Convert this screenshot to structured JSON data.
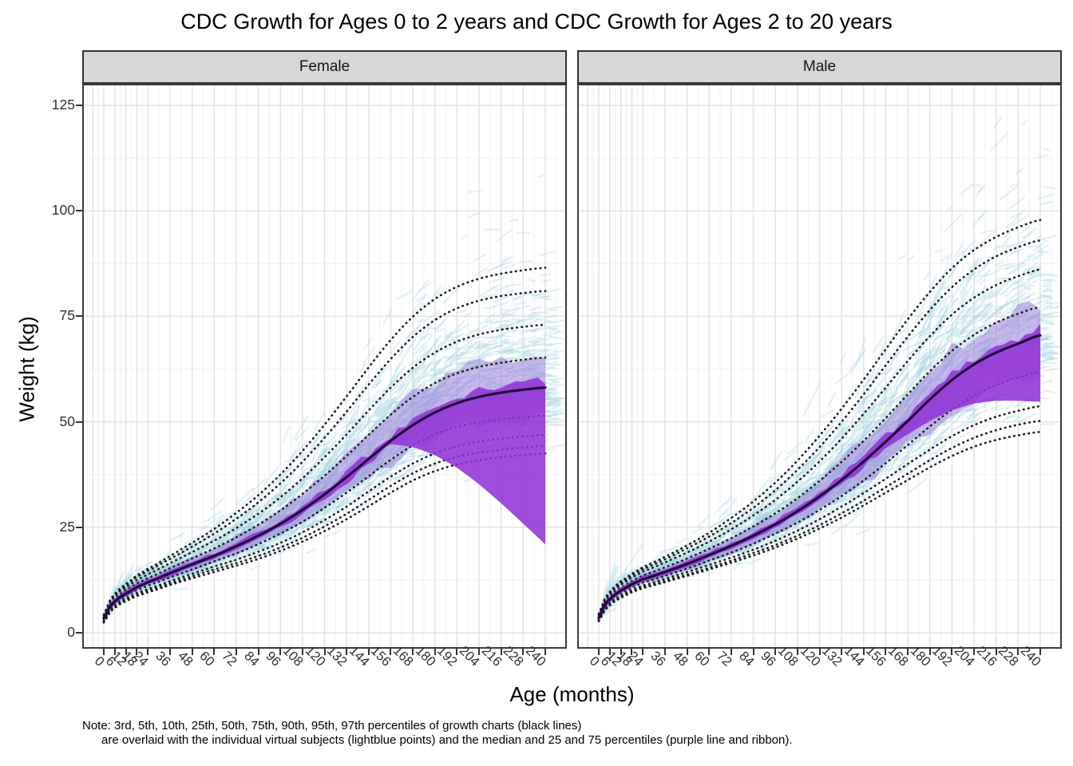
{
  "page": {
    "background": "#ffffff"
  },
  "note": {
    "line1": "Note: 3rd, 5th, 10th, 25th, 50th, 75th, 90th, 95th, 97th percentiles of growth charts (black lines)",
    "line2": "are overlaid with the individual virtual subjects (lightblue points) and the median and 25 and 75 percentiles (purple line and ribbon)."
  },
  "chart_data": {
    "type": "line",
    "title": "CDC Growth for Ages 0 to 2 years and CDC Growth for Ages 2 to 20 years",
    "xlabel": "Age (months)",
    "ylabel": "Weight (kg)",
    "x_ticks": [
      0,
      6,
      12,
      18,
      24,
      36,
      48,
      60,
      72,
      84,
      96,
      108,
      120,
      132,
      144,
      156,
      168,
      180,
      192,
      204,
      216,
      228,
      240
    ],
    "y_ticks": [
      0,
      25,
      50,
      75,
      100,
      125
    ],
    "xlim": [
      -12,
      252
    ],
    "ylim": [
      -4,
      130
    ],
    "grid": true,
    "legend_position": "none",
    "percentile_labels": [
      "3rd",
      "5th",
      "10th",
      "25th",
      "50th",
      "75th",
      "90th",
      "95th",
      "97th"
    ],
    "ages_months": [
      0,
      3,
      6,
      9,
      12,
      18,
      24,
      36,
      48,
      60,
      72,
      84,
      96,
      108,
      120,
      132,
      144,
      156,
      168,
      180,
      192,
      204,
      216,
      228,
      240
    ],
    "facets": [
      {
        "label": "Female",
        "series": {
          "p3": [
            2.4,
            4.6,
            5.9,
            6.8,
            7.5,
            8.7,
            9.6,
            11.3,
            12.9,
            14.4,
            15.9,
            17.5,
            19.4,
            21.6,
            24.1,
            26.9,
            30.0,
            33.2,
            36.1,
            38.3,
            39.9,
            40.9,
            41.6,
            42.1,
            42.5
          ],
          "p5": [
            2.5,
            4.8,
            6.1,
            7.0,
            7.8,
            9.0,
            10.0,
            11.7,
            13.4,
            15.0,
            16.5,
            18.2,
            20.2,
            22.5,
            25.2,
            28.2,
            31.5,
            34.8,
            37.8,
            40.1,
            41.7,
            42.7,
            43.4,
            43.9,
            44.3
          ],
          "p10": [
            2.7,
            5.1,
            6.4,
            7.4,
            8.1,
            9.4,
            10.4,
            12.2,
            14.0,
            15.7,
            17.3,
            19.2,
            21.3,
            23.8,
            26.7,
            29.9,
            33.5,
            37.0,
            40.1,
            42.5,
            44.2,
            45.3,
            46.0,
            46.5,
            46.9
          ],
          "p25": [
            3.0,
            5.5,
            6.9,
            7.9,
            8.7,
            10.1,
            11.2,
            13.1,
            15.0,
            16.9,
            18.8,
            21.0,
            23.5,
            26.3,
            29.6,
            33.2,
            37.1,
            41.0,
            44.4,
            47.0,
            48.8,
            49.9,
            50.6,
            51.1,
            51.5
          ],
          "p50": [
            3.4,
            6.0,
            7.4,
            8.5,
            9.3,
            10.8,
            12.0,
            14.1,
            16.2,
            18.2,
            20.5,
            23.0,
            25.8,
            29.1,
            32.8,
            36.9,
            41.2,
            45.5,
            49.2,
            52.2,
            54.4,
            55.9,
            56.9,
            57.6,
            58.1
          ],
          "p75": [
            3.7,
            6.5,
            8.0,
            9.2,
            10.1,
            11.7,
            13.0,
            15.3,
            17.6,
            20.0,
            22.6,
            25.6,
            29.0,
            32.9,
            37.2,
            41.9,
            46.9,
            51.7,
            55.9,
            59.2,
            61.5,
            63.0,
            64.0,
            64.7,
            65.2
          ],
          "p90": [
            4.0,
            7.0,
            8.6,
            9.9,
            10.8,
            12.5,
            13.9,
            16.5,
            19.1,
            21.8,
            24.8,
            28.2,
            32.1,
            36.6,
            41.6,
            47.0,
            52.7,
            58.1,
            62.8,
            66.4,
            69.0,
            70.7,
            71.8,
            72.5,
            73.0
          ],
          "p95": [
            4.2,
            7.2,
            8.9,
            10.3,
            11.3,
            13.2,
            14.7,
            17.5,
            20.4,
            23.5,
            27.0,
            30.9,
            35.4,
            40.5,
            46.2,
            52.4,
            58.8,
            64.9,
            70.1,
            74.1,
            76.9,
            78.7,
            79.8,
            80.5,
            81.0
          ],
          "p97": [
            4.3,
            7.4,
            9.2,
            10.6,
            11.6,
            13.6,
            15.2,
            18.2,
            21.3,
            24.6,
            28.4,
            32.6,
            37.5,
            43.1,
            49.3,
            56.0,
            62.9,
            69.4,
            74.9,
            79.1,
            82.0,
            83.9,
            85.1,
            85.9,
            86.5
          ]
        }
      },
      {
        "label": "Male",
        "series": {
          "p3": [
            2.7,
            5.1,
            6.5,
            7.5,
            8.3,
            9.6,
            10.6,
            12.0,
            13.5,
            15.0,
            16.6,
            18.3,
            20.2,
            22.3,
            24.7,
            27.3,
            30.2,
            33.2,
            36.2,
            39.2,
            41.9,
            44.1,
            45.7,
            46.8,
            47.6
          ],
          "p5": [
            2.8,
            5.3,
            6.7,
            7.7,
            8.5,
            9.8,
            10.8,
            12.3,
            13.8,
            15.4,
            17.1,
            18.9,
            20.8,
            23.0,
            25.5,
            28.3,
            31.3,
            34.5,
            37.7,
            40.9,
            43.8,
            46.2,
            48.0,
            49.3,
            50.2
          ],
          "p10": [
            3.0,
            5.5,
            7.0,
            8.0,
            8.8,
            10.2,
            11.2,
            12.8,
            14.4,
            16.1,
            17.8,
            19.7,
            21.8,
            24.2,
            26.9,
            29.9,
            33.1,
            36.5,
            40.0,
            43.4,
            46.6,
            49.2,
            51.2,
            52.6,
            53.7
          ],
          "p25": [
            3.2,
            5.9,
            7.4,
            8.6,
            9.4,
            10.8,
            11.9,
            13.5,
            15.2,
            17.1,
            19.0,
            21.1,
            23.5,
            26.1,
            29.1,
            32.4,
            36.1,
            40.2,
            44.5,
            48.9,
            52.9,
            56.2,
            58.7,
            60.5,
            61.8
          ],
          "p50": [
            3.5,
            6.4,
            7.9,
            9.1,
            10.0,
            11.5,
            12.7,
            14.4,
            16.3,
            18.4,
            20.6,
            23.0,
            25.7,
            28.8,
            32.3,
            36.2,
            40.6,
            45.3,
            50.2,
            55.3,
            59.9,
            63.6,
            66.4,
            68.5,
            70.5
          ],
          "p75": [
            3.9,
            6.9,
            8.5,
            9.8,
            10.7,
            12.3,
            13.6,
            15.5,
            17.6,
            19.9,
            22.4,
            25.2,
            28.3,
            31.9,
            36.0,
            40.5,
            45.5,
            50.9,
            56.5,
            62.0,
            66.8,
            70.6,
            73.5,
            75.6,
            77.2
          ],
          "p90": [
            4.2,
            7.3,
            9.1,
            10.4,
            11.4,
            13.1,
            14.5,
            16.7,
            19.0,
            21.6,
            24.5,
            27.8,
            31.5,
            35.8,
            40.6,
            46.0,
            51.9,
            58.1,
            64.4,
            70.3,
            75.4,
            79.4,
            82.4,
            84.5,
            86.1
          ],
          "p95": [
            4.4,
            7.6,
            9.4,
            10.8,
            11.8,
            13.6,
            15.1,
            17.4,
            20.0,
            22.8,
            26.0,
            29.6,
            33.8,
            38.6,
            44.0,
            50.0,
            56.5,
            63.4,
            70.2,
            76.5,
            81.9,
            86.1,
            89.2,
            91.4,
            93.0
          ],
          "p97": [
            4.5,
            7.8,
            9.7,
            11.1,
            12.2,
            14.0,
            15.6,
            18.0,
            20.7,
            23.7,
            27.2,
            31.1,
            35.6,
            40.8,
            46.7,
            53.1,
            60.0,
            67.2,
            74.3,
            80.8,
            86.4,
            90.7,
            93.8,
            96.1,
            97.8
          ]
        }
      }
    ],
    "styles": {
      "percentile_line_color": "#1c1c1c",
      "subject_stroke_color": "rgba(164,211,224,0.33)",
      "ribbon_color": "rgba(151,117,218,0.50)",
      "median_band_color": "rgba(147,51,214,0.88)",
      "median_line_color": "#23073d",
      "strip_bg": "#d7d7d7",
      "panel_border": "#3c3c3c",
      "grid_major": "#e3e3e3",
      "grid_minor": "#f2f2f2",
      "axis_text": "#303030",
      "subjects_per_facet": 3000
    }
  }
}
